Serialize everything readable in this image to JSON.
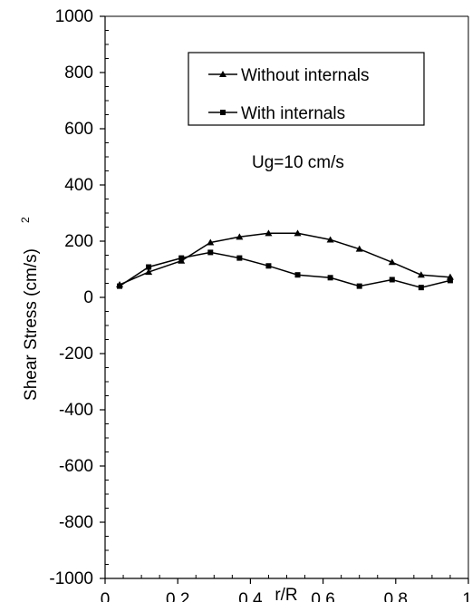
{
  "chart_data": {
    "type": "line",
    "title": "",
    "xlabel": "r/R",
    "ylabel": "Shear Stress (cm/s)",
    "ylabel_superscript": "2",
    "xlim": [
      0,
      1
    ],
    "ylim": [
      -1000,
      1000
    ],
    "x_ticks": [
      0,
      0.2,
      0.4,
      0.6,
      0.8,
      1
    ],
    "x_tick_labels": [
      "0",
      "0.2",
      "0.4",
      "0.6",
      "0.8",
      "1"
    ],
    "y_ticks": [
      1000,
      800,
      600,
      400,
      200,
      0,
      -200,
      -400,
      -600,
      -800,
      -1000
    ],
    "y_tick_labels": [
      "1000",
      "800",
      "600",
      "400",
      "200",
      "0",
      "-200",
      "-400",
      "-600",
      "-800",
      "-1000"
    ],
    "grid": false,
    "legend_position": "top-right",
    "annotation": "Ug=10 cm/s",
    "series": [
      {
        "name": "Without internals",
        "marker": "triangle",
        "x": [
          0.04,
          0.12,
          0.21,
          0.29,
          0.37,
          0.45,
          0.53,
          0.62,
          0.7,
          0.79,
          0.87,
          0.95
        ],
        "y": [
          45,
          90,
          130,
          195,
          215,
          228,
          228,
          205,
          172,
          125,
          80,
          72
        ]
      },
      {
        "name": "With internals",
        "marker": "square",
        "x": [
          0.04,
          0.12,
          0.21,
          0.29,
          0.37,
          0.45,
          0.53,
          0.62,
          0.7,
          0.79,
          0.87,
          0.95
        ],
        "y": [
          40,
          108,
          140,
          160,
          140,
          112,
          80,
          70,
          40,
          63,
          35,
          60
        ]
      }
    ]
  }
}
